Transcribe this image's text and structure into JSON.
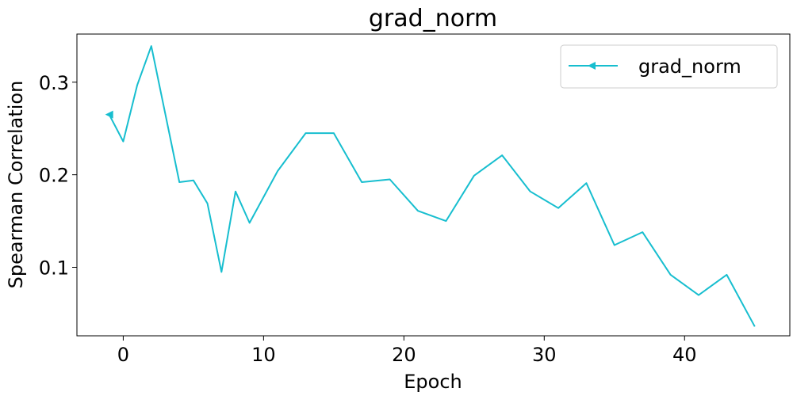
{
  "chart_data": {
    "type": "line",
    "title": "grad_norm",
    "xlabel": "Epoch",
    "ylabel": "Spearman Correlation",
    "xlim": [
      -3.3,
      47.5
    ],
    "ylim": [
      0.026,
      0.352
    ],
    "xticks": [
      0,
      10,
      20,
      30,
      40
    ],
    "yticks": [
      0.1,
      0.2,
      0.3
    ],
    "ytick_labels": [
      "0.1",
      "0.2",
      "0.3"
    ],
    "grid": false,
    "legend": {
      "position": "top-right",
      "entries": [
        "grad_norm"
      ]
    },
    "series": [
      {
        "name": "grad_norm",
        "color": "#17becf",
        "marker": "triangle-left",
        "x": [
          -1,
          0,
          1,
          2,
          4,
          5,
          6,
          7,
          8,
          9,
          11,
          13,
          15,
          17,
          19,
          21,
          23,
          25,
          27,
          29,
          31,
          33,
          35,
          37,
          39,
          41,
          43,
          45
        ],
        "y": [
          0.265,
          0.236,
          0.297,
          0.339,
          0.192,
          0.194,
          0.169,
          0.095,
          0.182,
          0.148,
          0.204,
          0.245,
          0.245,
          0.192,
          0.195,
          0.161,
          0.15,
          0.199,
          0.221,
          0.182,
          0.164,
          0.191,
          0.124,
          0.138,
          0.092,
          0.07,
          0.092,
          0.036
        ]
      }
    ]
  }
}
